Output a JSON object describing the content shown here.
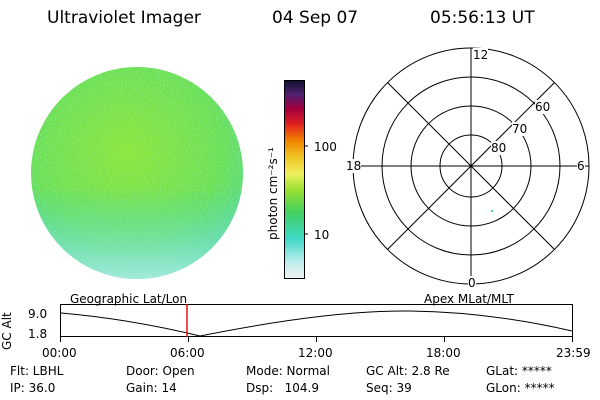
{
  "header": {
    "title": "Ultraviolet Imager",
    "date": "04 Sep 07",
    "time": "05:56:13 UT"
  },
  "colorbar": {
    "label": "photon cm⁻²s⁻¹",
    "ticks": [
      "100",
      "10"
    ]
  },
  "polar_plot": {
    "mlt_labels": {
      "top": "12",
      "left": "18",
      "right": "6",
      "bottom": "0"
    },
    "lat_labels": [
      "60",
      "70",
      "80"
    ]
  },
  "timeline": {
    "left_label": "Geographic Lat/Lon",
    "right_label": "Apex MLat/MLT",
    "axis_title": "GC Alt",
    "y_ticks": [
      "9.0",
      "1.8"
    ],
    "x_ticks": [
      "00:00",
      "06:00",
      "12:00",
      "18:00",
      "23:59"
    ],
    "marker_color": "#e00000"
  },
  "status": {
    "flt": "Flt: LBHL",
    "ip": "IP: 36.0",
    "door": "Door: Open",
    "gain": "Gain: 14",
    "mode": "Mode: Normal",
    "dsp": "Dsp:   104.9",
    "gcalt": "GC Alt: 2.8 Re",
    "seq": "Seq: 39",
    "glat": "GLat: *****",
    "glon": "GLon: *****"
  }
}
